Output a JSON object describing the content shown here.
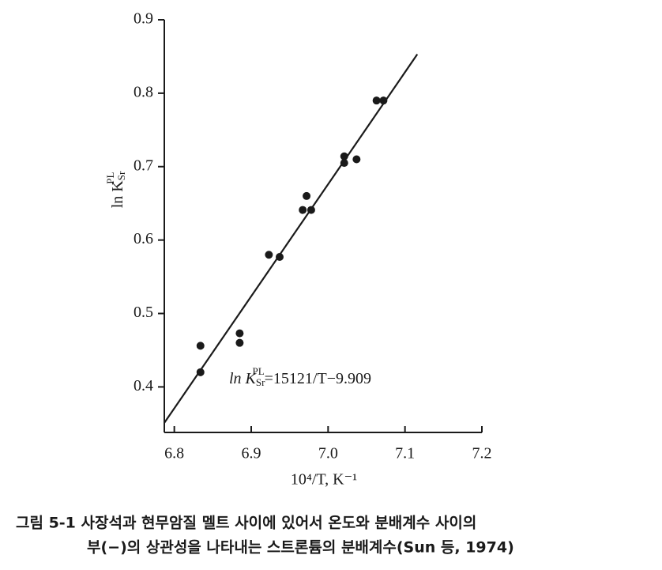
{
  "chart_data": {
    "type": "scatter",
    "y_label": {
      "base": "ln K",
      "sub": "Sr",
      "sup": "PL"
    },
    "x_label": "10⁴/T,   K⁻¹",
    "annotation": {
      "base": "ln K",
      "sub": "Sr",
      "sup": "PL",
      "rest": "=15121/T−9.909"
    },
    "caption": [
      "그림 5-1  사장석과 현무암질 멜트 사이에 있어서 온도와 분배계수 사이의",
      "부(−)의 상관성을 나타내는 스트론튬의 분배계수(Sun 등, 1974)"
    ],
    "x": [
      6.834,
      6.834,
      6.885,
      6.885,
      6.923,
      6.937,
      6.967,
      6.972,
      6.978,
      7.021,
      7.021,
      7.037,
      7.063,
      7.072
    ],
    "values": [
      0.456,
      0.42,
      0.473,
      0.46,
      0.58,
      0.577,
      0.641,
      0.66,
      0.641,
      0.714,
      0.705,
      0.71,
      0.79,
      0.79
    ],
    "color": "#1a1a1a",
    "fit_line": {
      "x": [
        6.787,
        7.116
      ],
      "y": [
        0.351,
        0.853
      ]
    },
    "xlim": [
      6.787,
      7.2
    ],
    "xticks": [
      6.8,
      6.9,
      {
        "value": 7,
        "label": "7.0"
      },
      7.1,
      7.2
    ],
    "ylim": [
      0.338,
      0.9
    ],
    "yticks": [
      0.4,
      0.5,
      0.6,
      0.7,
      0.8,
      0.9
    ]
  }
}
